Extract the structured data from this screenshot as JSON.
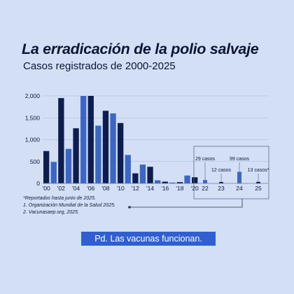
{
  "title": "La erradicación de la polio salvaje",
  "subtitle": "Casos registrados de 2000-2025",
  "notes": [
    "*Reportados hasta junio de 2025.",
    "1. Organización Mundial de la Salud 2025.",
    "2. Vacunasaep.org, 2025."
  ],
  "tagline": "Pd. Las vacunas funcionan.",
  "colors": {
    "background": "#d3dff5",
    "dark_bar": "#0d1d4f",
    "light_bar": "#3b66c4",
    "grid": "#aab8d6",
    "tagline_bg": "#2f5fd1"
  },
  "chart_data": {
    "type": "bar",
    "categories": [
      "2000",
      "2001",
      "2002",
      "2003",
      "2004",
      "2005",
      "2006",
      "2007",
      "2008",
      "2009",
      "2010",
      "2011",
      "2012",
      "2013",
      "2014",
      "2015",
      "2016",
      "2017",
      "2018",
      "2019",
      "2020",
      "2021",
      "2022",
      "2023",
      "2024",
      "2025"
    ],
    "values": [
      740,
      490,
      1950,
      790,
      1260,
      2000,
      2000,
      1320,
      1660,
      1600,
      1380,
      650,
      230,
      430,
      380,
      70,
      40,
      20,
      30,
      180,
      140,
      6,
      29,
      12,
      99,
      13
    ],
    "tick_labels_x": [
      "'00",
      "'02",
      "'04",
      "'06",
      "'08",
      "'10",
      "'12",
      "'14",
      "'16",
      "'18",
      "'20"
    ],
    "tick_labels_y": [
      "0",
      "500",
      "1,000",
      "1,500",
      "2,000"
    ],
    "ylim": [
      0,
      2000
    ],
    "grid": true,
    "zoom_inset": {
      "tick_labels": [
        "22",
        "23",
        "24",
        "25"
      ],
      "annotations": [
        "29 casos",
        "12 casos",
        "99 casos",
        "13 casos*"
      ]
    }
  }
}
